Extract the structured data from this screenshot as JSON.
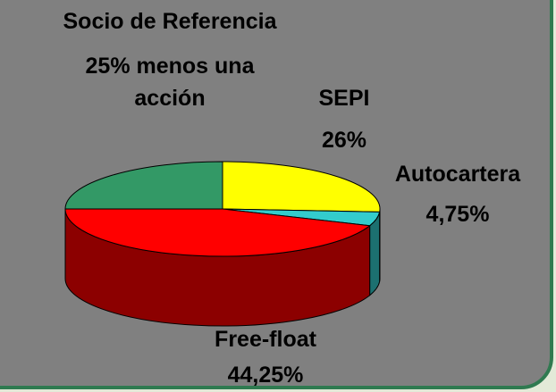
{
  "chart_data": {
    "type": "pie",
    "categories": [
      "SEPI",
      "Autocartera",
      "Free-float",
      "Socio de Referencia"
    ],
    "values": [
      26,
      4.75,
      44.25,
      25
    ],
    "value_labels": [
      "26%",
      "4,75%",
      "44,25%",
      "25% menos una acción"
    ],
    "colors": [
      "#ffff00",
      "#33cccc",
      "#ff0000",
      "#339966"
    ]
  }
}
